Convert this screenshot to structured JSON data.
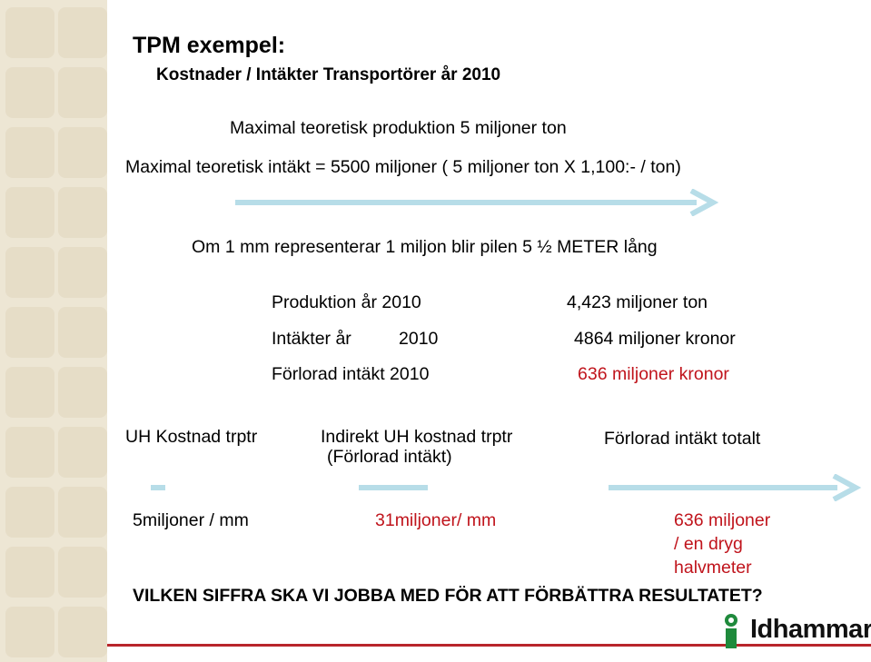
{
  "slide": {
    "title": "TPM exempel:",
    "subtitle": "Kostnader / Intäkter Transportörer år 2010",
    "line1": "Maximal teoretisk produktion 5 miljoner ton",
    "line2": "Maximal teoretisk intäkt = 5500 miljoner ( 5 miljoner ton X 1,100:- / ton)",
    "line3": "Om 1 mm representerar 1 miljon  blir  pilen 5 ½ METER lång",
    "stats": [
      {
        "label": "Produktion år 2010",
        "value": "4,423 miljoner ton"
      },
      {
        "label": "Intäkter år",
        "year": "2010",
        "value": "4864 miljoner kronor"
      },
      {
        "label": "Förlorad intäkt  2010",
        "value": "636 miljoner kronor"
      }
    ],
    "columns": {
      "col1_header": "UH Kostnad trptr",
      "col2_header_line1": "Indirekt UH kostnad trptr",
      "col2_header_line2": "(Förlorad intäkt)",
      "col3_header": "Förlorad intäkt totalt",
      "col1_value": "5miljoner / mm",
      "col2_value": "31miljoner/ mm",
      "col3_value_line1": "636 miljoner",
      "col3_value_line2": "/ en dryg",
      "col3_value_line3": "halvmeter"
    },
    "question": "VILKEN SIFFRA SKA VI JOBBA MED FÖR ATT FÖRBÄTTRA RESULTATET?",
    "logo_text": "Idhammar",
    "colors": {
      "arrow": "#b7dde8",
      "red_text": "#c0141c",
      "logo_green": "#1f8a3c",
      "footer_bar": "#b8252b",
      "side_panel": "#ede6d4"
    }
  }
}
